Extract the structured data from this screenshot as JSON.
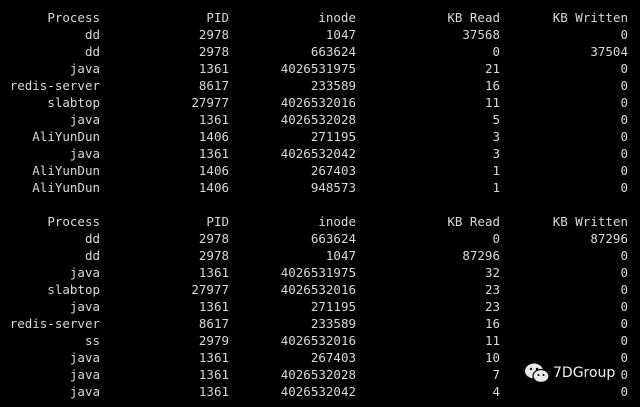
{
  "tables": [
    {
      "headers": [
        "Process",
        "PID",
        "inode",
        "KB Read",
        "KB Written"
      ],
      "rows": [
        [
          "dd",
          "2978",
          "1047",
          "37568",
          "0"
        ],
        [
          "dd",
          "2978",
          "663624",
          "0",
          "37504"
        ],
        [
          "java",
          "1361",
          "4026531975",
          "21",
          "0"
        ],
        [
          "redis-server",
          "8617",
          "233589",
          "16",
          "0"
        ],
        [
          "slabtop",
          "27977",
          "4026532016",
          "11",
          "0"
        ],
        [
          "java",
          "1361",
          "4026532028",
          "5",
          "0"
        ],
        [
          "AliYunDun",
          "1406",
          "271195",
          "3",
          "0"
        ],
        [
          "java",
          "1361",
          "4026532042",
          "3",
          "0"
        ],
        [
          "AliYunDun",
          "1406",
          "267403",
          "1",
          "0"
        ],
        [
          "AliYunDun",
          "1406",
          "948573",
          "1",
          "0"
        ]
      ]
    },
    {
      "headers": [
        "Process",
        "PID",
        "inode",
        "KB Read",
        "KB Written"
      ],
      "rows": [
        [
          "dd",
          "2978",
          "663624",
          "0",
          "87296"
        ],
        [
          "dd",
          "2978",
          "1047",
          "87296",
          "0"
        ],
        [
          "java",
          "1361",
          "4026531975",
          "32",
          "0"
        ],
        [
          "slabtop",
          "27977",
          "4026532016",
          "23",
          "0"
        ],
        [
          "java",
          "1361",
          "271195",
          "23",
          "0"
        ],
        [
          "redis-server",
          "8617",
          "233589",
          "16",
          "0"
        ],
        [
          "ss",
          "2979",
          "4026532016",
          "11",
          "0"
        ],
        [
          "java",
          "1361",
          "267403",
          "10",
          "0"
        ],
        [
          "java",
          "1361",
          "4026532028",
          "7",
          "0"
        ],
        [
          "java",
          "1361",
          "4026532042",
          "4",
          "0"
        ]
      ]
    }
  ],
  "watermark": {
    "text": "7DGroup",
    "icon": "wechat-icon"
  }
}
